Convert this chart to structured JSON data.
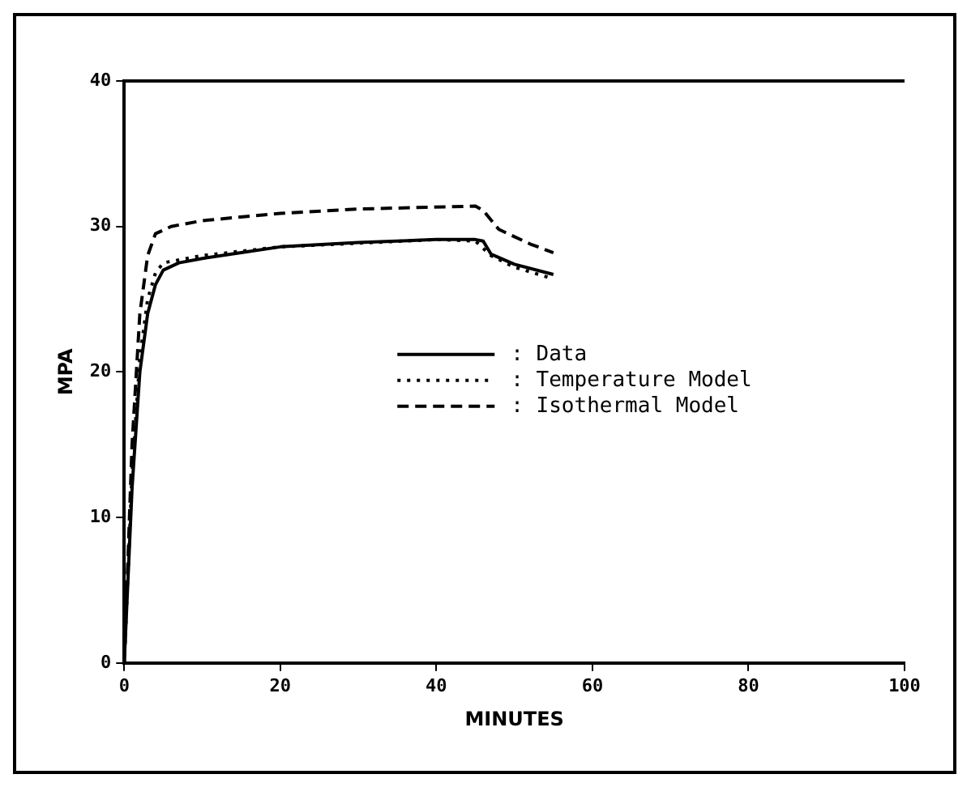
{
  "chart_data": {
    "type": "line",
    "xlabel": "MINUTES",
    "ylabel": "MPA",
    "xlim": [
      0,
      100
    ],
    "xticks": [
      0,
      20,
      40,
      60,
      80,
      100
    ],
    "ylim": [
      0,
      40
    ],
    "yticks": [
      0,
      10,
      20,
      30,
      40
    ],
    "grid": false,
    "legend": "right",
    "marker": "none",
    "series": [
      {
        "name": ": Data",
        "color": "#000000",
        "line_style": "solid",
        "x": [
          0,
          1,
          2,
          3,
          4,
          5,
          7,
          10,
          15,
          20,
          30,
          40,
          45,
          46,
          47,
          50,
          55
        ],
        "values": [
          0,
          12,
          20,
          24,
          26,
          27,
          27.5,
          27.8,
          28.2,
          28.6,
          28.9,
          29.1,
          29.1,
          29,
          28.1,
          27.4,
          26.7
        ]
      },
      {
        "name": ": Temperature Model",
        "color": "#000000",
        "line_style": "dotted",
        "x": [
          0,
          1,
          2,
          3,
          4,
          5,
          10,
          20,
          40,
          45,
          47,
          50,
          55
        ],
        "values": [
          0,
          13,
          21,
          25,
          26.8,
          27.5,
          28,
          28.6,
          29.1,
          29,
          28,
          27.2,
          26.4
        ]
      },
      {
        "name": ": Isothermal Model",
        "color": "#000000",
        "line_style": "dashed",
        "x": [
          0,
          1,
          2,
          3,
          4,
          6,
          10,
          20,
          30,
          45,
          46,
          48,
          52,
          55
        ],
        "values": [
          0,
          15,
          24,
          28,
          29.5,
          30,
          30.4,
          30.9,
          31.2,
          31.4,
          31.1,
          29.8,
          28.8,
          28.2
        ]
      }
    ]
  }
}
